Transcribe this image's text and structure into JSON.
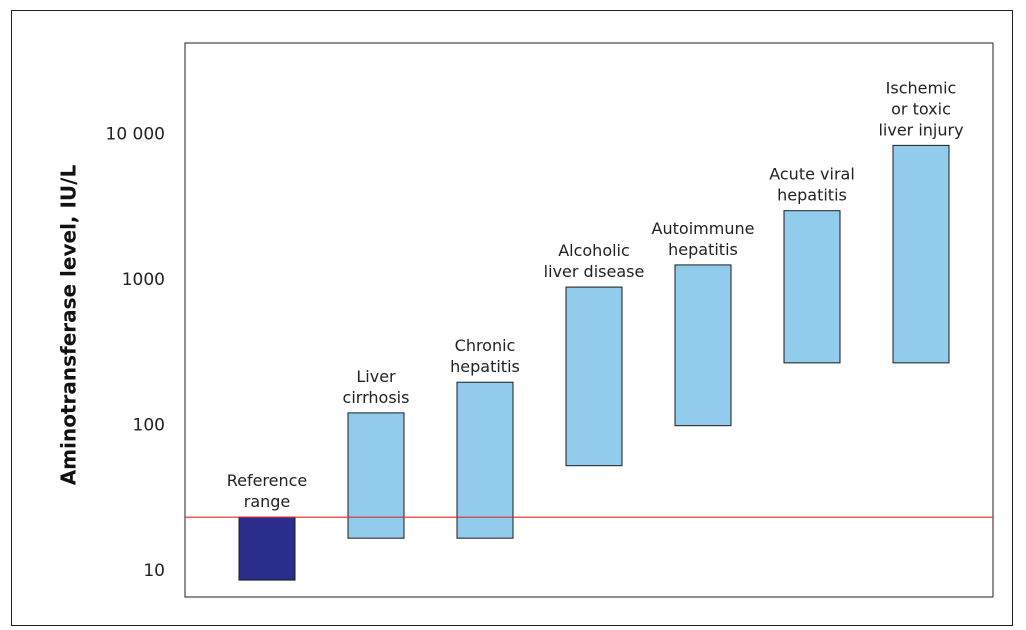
{
  "chart_data": {
    "type": "floating-bar",
    "title": "",
    "xlabel": "",
    "ylabel": "Aminotransferase level, IU/L",
    "yscale": "log",
    "ylim": [
      6.5,
      42000
    ],
    "yticks": [
      {
        "value": 10,
        "label": "10"
      },
      {
        "value": 100,
        "label": "100"
      },
      {
        "value": 1000,
        "label": "1000"
      },
      {
        "value": 10000,
        "label": "10 000"
      }
    ],
    "grid": false,
    "categories": [
      {
        "label_lines": [
          "Reference",
          "range"
        ],
        "low": 8.5,
        "high": 23,
        "color": "#2b2d8c"
      },
      {
        "label_lines": [
          "Liver",
          "cirrhosis"
        ],
        "low": 16.5,
        "high": 120,
        "color": "#92cced"
      },
      {
        "label_lines": [
          "Chronic",
          "hepatitis"
        ],
        "low": 16.5,
        "high": 195,
        "color": "#92cced"
      },
      {
        "label_lines": [
          "Alcoholic",
          "liver disease"
        ],
        "low": 52,
        "high": 880,
        "color": "#92cced"
      },
      {
        "label_lines": [
          "Autoimmune",
          "hepatitis"
        ],
        "low": 98,
        "high": 1250,
        "color": "#92cced"
      },
      {
        "label_lines": [
          "Acute viral",
          "hepatitis"
        ],
        "low": 265,
        "high": 2950,
        "color": "#92cced"
      },
      {
        "label_lines": [
          "Ischemic",
          "or toxic",
          "liver injury"
        ],
        "low": 265,
        "high": 8300,
        "color": "#92cced"
      }
    ],
    "reference_line": {
      "value": 23,
      "color": "#e0262b"
    }
  }
}
